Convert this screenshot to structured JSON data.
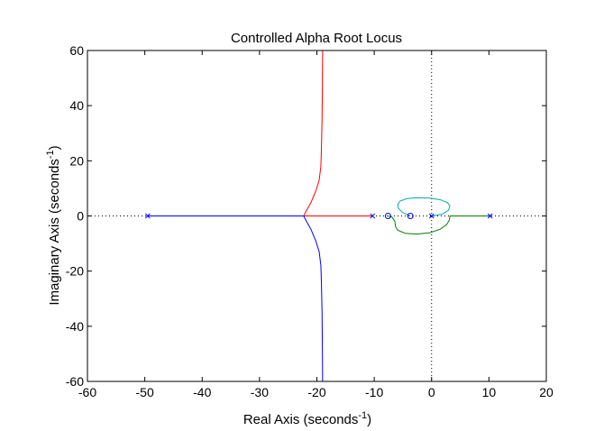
{
  "chart_data": {
    "type": "line",
    "title": "Controlled Alpha Root Locus",
    "xlabel": "Real Axis (seconds",
    "xlabel_sup": "-1",
    "xlabel_close": ")",
    "ylabel": "Imaginary Axis (seconds",
    "ylabel_sup": "-1",
    "ylabel_close": ")",
    "xlim": [
      -60,
      20
    ],
    "ylim": [
      -60,
      60
    ],
    "xticks": [
      -60,
      -50,
      -40,
      -30,
      -20,
      -10,
      0,
      10,
      20
    ],
    "yticks": [
      -60,
      -40,
      -20,
      0,
      20,
      40,
      60
    ],
    "grid": false,
    "zero_reference_lines": true,
    "poles": [
      {
        "x": -49.5,
        "y": 0
      },
      {
        "x": -10.3,
        "y": 0
      },
      {
        "x": 0,
        "y": 0
      },
      {
        "x": 10.2,
        "y": 0
      }
    ],
    "zeros": [
      {
        "x": -7.6,
        "y": 0
      },
      {
        "x": -3.7,
        "y": 0
      }
    ],
    "series": [
      {
        "color": "#ff0000",
        "points": [
          [
            -10.3,
            0
          ],
          [
            -14,
            0
          ],
          [
            -18,
            0
          ],
          [
            -22.3,
            0
          ],
          [
            -21.8,
            2
          ],
          [
            -21,
            5
          ],
          [
            -20.2,
            9
          ],
          [
            -19.6,
            13
          ],
          [
            -19.3,
            18
          ],
          [
            -19.2,
            25
          ],
          [
            -19.1,
            35
          ],
          [
            -19.05,
            45
          ],
          [
            -19,
            60
          ]
        ]
      },
      {
        "color": "#0000ff",
        "points": [
          [
            -49.5,
            0
          ],
          [
            -40,
            0
          ],
          [
            -30,
            0
          ],
          [
            -22.3,
            0
          ],
          [
            -21.8,
            -2
          ],
          [
            -21,
            -5
          ],
          [
            -20.2,
            -9
          ],
          [
            -19.6,
            -13
          ],
          [
            -19.3,
            -18
          ],
          [
            -19.2,
            -25
          ],
          [
            -19.1,
            -35
          ],
          [
            -19.05,
            -45
          ],
          [
            -19,
            -60
          ]
        ]
      },
      {
        "color": "#00aaaa",
        "points": [
          [
            0,
            0
          ],
          [
            1.8,
            0.6
          ],
          [
            2.9,
            2
          ],
          [
            3.2,
            3.5
          ],
          [
            2.8,
            4.8
          ],
          [
            1.5,
            5.9
          ],
          [
            -0.5,
            6.5
          ],
          [
            -2.5,
            6.6
          ],
          [
            -4.3,
            6.3
          ],
          [
            -5.5,
            5.4
          ],
          [
            -5.9,
            4.2
          ],
          [
            -5.8,
            2.8
          ],
          [
            -5,
            1.2
          ],
          [
            -3.7,
            0
          ]
        ]
      },
      {
        "color": "#008000",
        "points": [
          [
            10.2,
            0
          ],
          [
            6,
            0
          ],
          [
            3.2,
            0
          ],
          [
            3.1,
            -1.5
          ],
          [
            2.6,
            -3.2
          ],
          [
            1.5,
            -4.8
          ],
          [
            -0.3,
            -6.1
          ],
          [
            -2.6,
            -6.6
          ],
          [
            -4.6,
            -6.3
          ],
          [
            -5.9,
            -5.2
          ],
          [
            -6.3,
            -3.8
          ],
          [
            -6.4,
            -2
          ],
          [
            -6.9,
            -0.4
          ],
          [
            -7.6,
            0
          ]
        ]
      }
    ]
  }
}
